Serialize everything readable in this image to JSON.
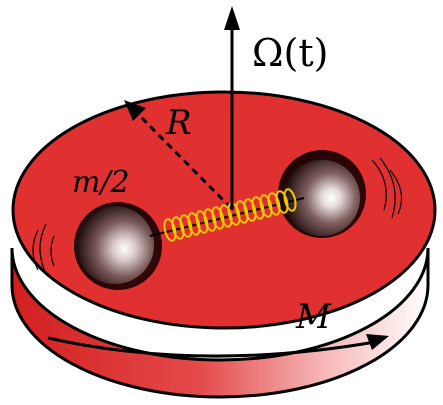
{
  "labels": {
    "omega": "Ω(t)",
    "radius": "R",
    "mass": "m/2",
    "disk_mass": "M"
  },
  "colors": {
    "disk_top": "#e03030",
    "disk_side_dark": "#c81818",
    "disk_side_light": "#ffffff",
    "spring": "#f0c800",
    "outline": "#000000"
  }
}
